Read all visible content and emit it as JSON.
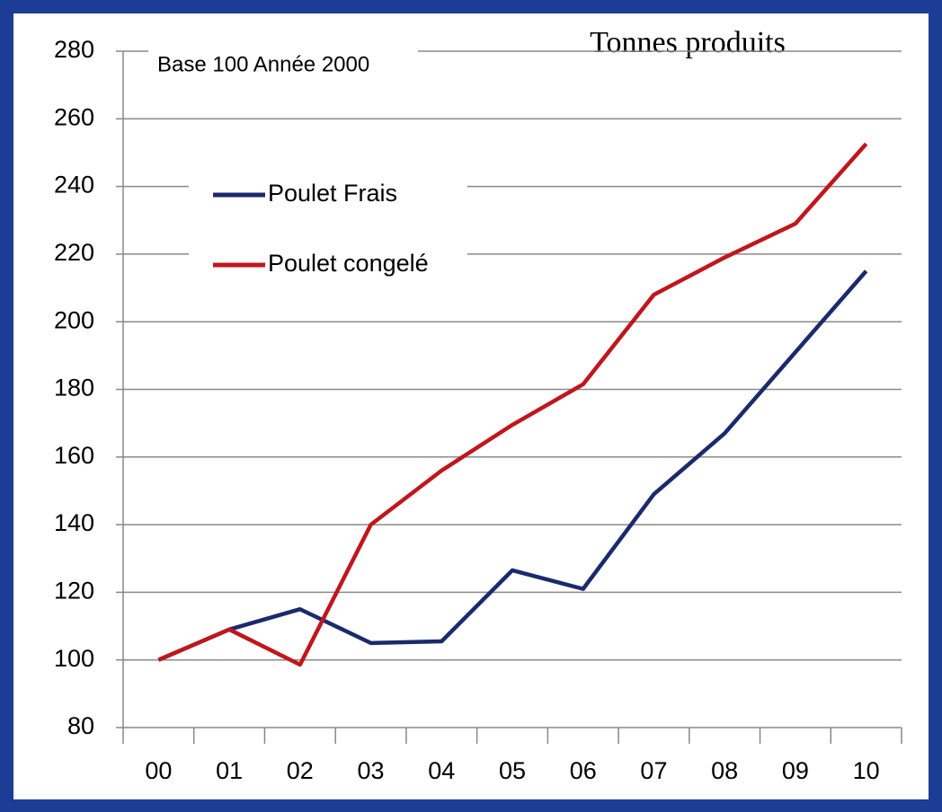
{
  "chart_data": {
    "type": "line",
    "title": "Tonnes produits",
    "annotation": "Base 100 Année 2000",
    "categories": [
      "00",
      "01",
      "02",
      "03",
      "04",
      "05",
      "06",
      "07",
      "08",
      "09",
      "10"
    ],
    "series": [
      {
        "name": "Poulet Frais",
        "color": "#1a2a6c",
        "values": [
          100,
          109,
          115,
          105,
          105.5,
          126.5,
          121,
          149,
          167,
          191,
          215
        ]
      },
      {
        "name": "Poulet congelé",
        "color": "#c0161c",
        "values": [
          100,
          109,
          98.6,
          140,
          156,
          169.5,
          181.5,
          208,
          219,
          229,
          252.6
        ]
      }
    ],
    "ylim": [
      80,
      280
    ],
    "yticks": [
      80,
      100,
      120,
      140,
      160,
      180,
      200,
      220,
      240,
      260,
      280
    ],
    "grid": true
  }
}
